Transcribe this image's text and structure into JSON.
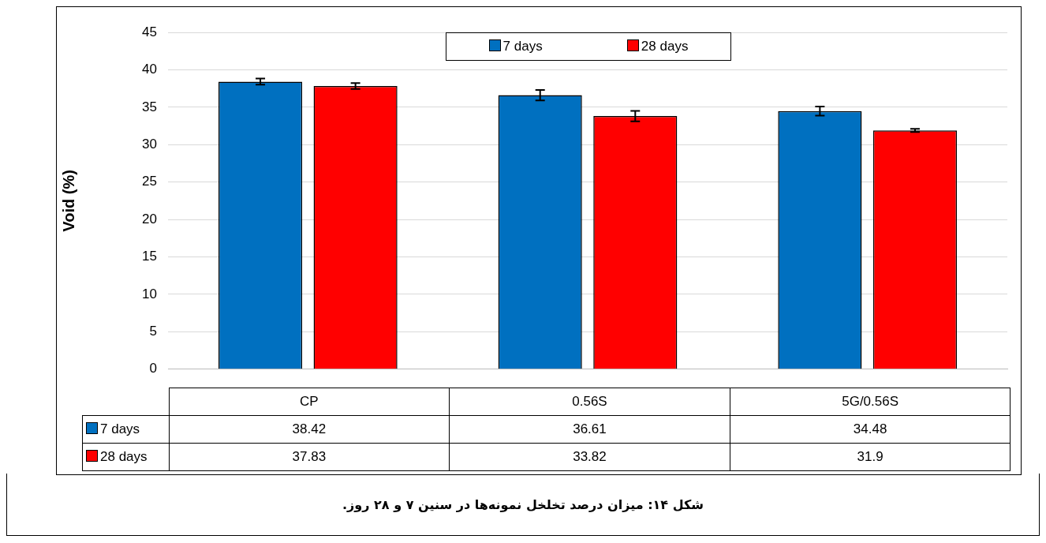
{
  "chart_data": {
    "type": "bar",
    "ylabel": "Void (%)",
    "categories": [
      "CP",
      "0.56S",
      "5G/0.56S"
    ],
    "series": [
      {
        "name": "7 days",
        "color": "#0070c0",
        "values": [
          38.42,
          36.61,
          34.48
        ],
        "errors": [
          0.4,
          0.7,
          0.6
        ]
      },
      {
        "name": "28 days",
        "color": "#ff0000",
        "values": [
          37.83,
          33.82,
          31.9
        ],
        "errors": [
          0.4,
          0.7,
          0.2
        ]
      }
    ],
    "ylim": [
      0,
      45
    ],
    "yticks": [
      0,
      5,
      10,
      15,
      20,
      25,
      30,
      35,
      40,
      45
    ],
    "grid": "y",
    "legend": "top",
    "data_labels": true,
    "annotations": [
      "شکل ۱۴: میزان درصد تخلخل نمونه‌ها در سنین ۷ و ۲۸ روز."
    ]
  }
}
